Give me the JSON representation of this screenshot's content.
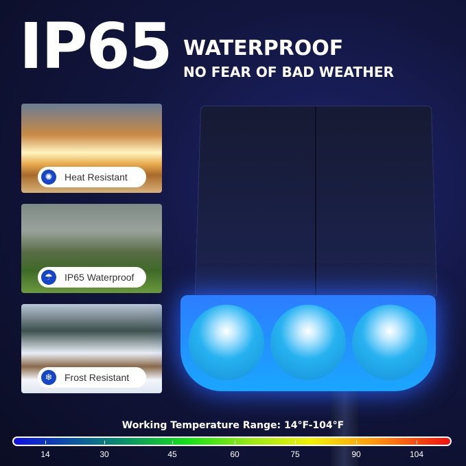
{
  "header": {
    "big": "IP65",
    "line1": "WATERPROOF",
    "line2": "NO FEAR OF BAD WEATHER"
  },
  "features": [
    {
      "label": "Heat Resistant",
      "icon": "sun-icon"
    },
    {
      "label": "IP65 Waterproof",
      "icon": "umbrella-icon"
    },
    {
      "label": "Frost Resistant",
      "icon": "snowflake-icon"
    }
  ],
  "temperature": {
    "title": "Working Temperature Range: 14°F-104°F",
    "ticks": [
      "14",
      "30",
      "45",
      "60",
      "75",
      "90",
      "104"
    ],
    "range_f": [
      14,
      104
    ]
  },
  "colors": {
    "accent": "#1646c8"
  }
}
